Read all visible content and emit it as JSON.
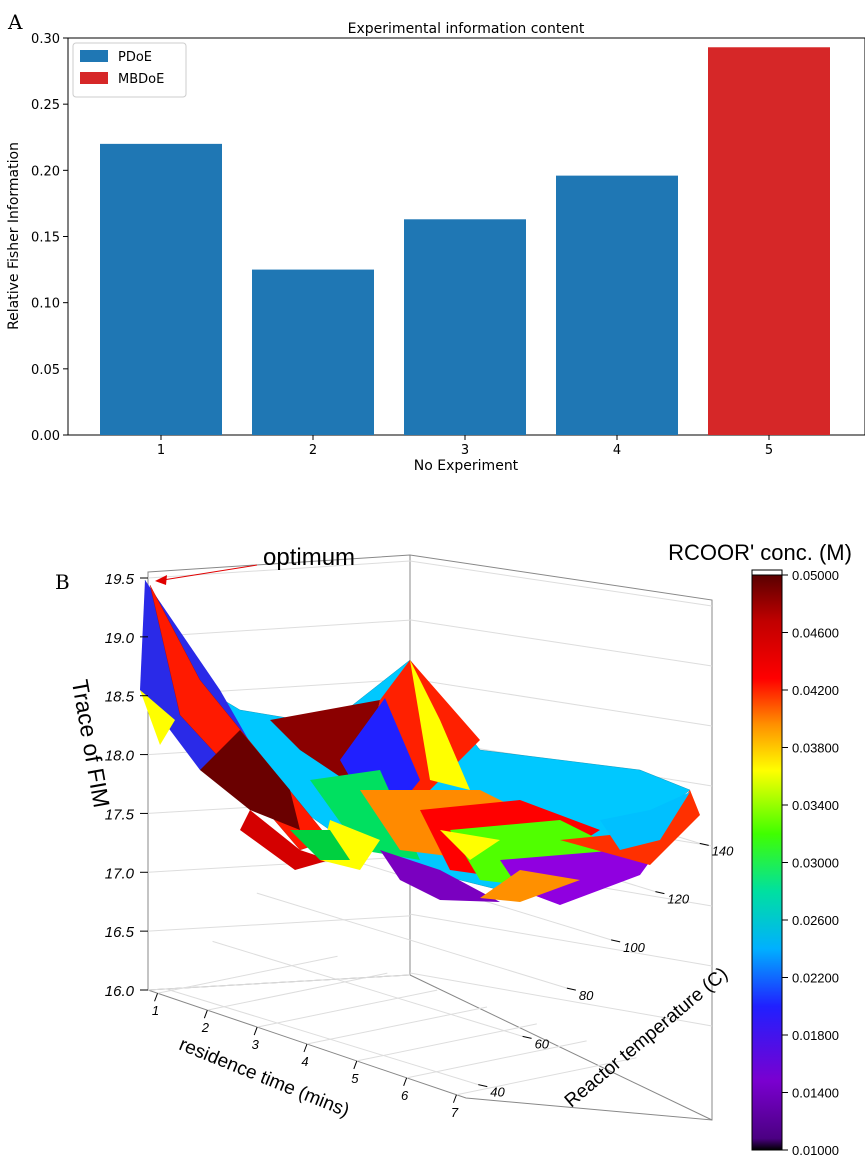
{
  "panel_letters": {
    "a": "A",
    "b": "B"
  },
  "chart_data": [
    {
      "type": "bar",
      "title": "Experimental information content",
      "xlabel": "No Experiment",
      "ylabel": "Relative Fisher Information",
      "categories": [
        "1",
        "2",
        "3",
        "4",
        "5"
      ],
      "values": [
        0.22,
        0.125,
        0.163,
        0.196,
        0.293
      ],
      "bar_groups": [
        "PDoE",
        "PDoE",
        "PDoE",
        "PDoE",
        "MBDoE"
      ],
      "legend": [
        {
          "label": "PDoE",
          "color": "#1f77b4"
        },
        {
          "label": "MBDoE",
          "color": "#d62728"
        }
      ],
      "legend_position": "top-left",
      "ylim": [
        0,
        0.3
      ],
      "yticks": [
        "0.00",
        "0.05",
        "0.10",
        "0.15",
        "0.20",
        "0.25",
        "0.30"
      ],
      "grid": false
    },
    {
      "type": "surface3d",
      "zlabel": "Trace of FIM",
      "xlabel": "residence time (mins)",
      "ylabel": "Reactor temperature (C)",
      "xticks": [
        "1",
        "2",
        "3",
        "4",
        "5",
        "6",
        "7"
      ],
      "yticks": [
        "40",
        "60",
        "80",
        "100",
        "120",
        "140"
      ],
      "zticks": [
        "16.0",
        "16.5",
        "17.0",
        "17.5",
        "18.0",
        "18.5",
        "19.0",
        "19.5"
      ],
      "zlim": [
        16.0,
        19.5
      ],
      "annotation": "optimum",
      "colorbar": {
        "title": "RCOOR' conc. (M)",
        "ticks": [
          "0.05000",
          "0.04600",
          "0.04200",
          "0.03800",
          "0.03400",
          "0.03000",
          "0.02600",
          "0.02200",
          "0.01800",
          "0.01400",
          "0.01000"
        ],
        "range": [
          0.01,
          0.05
        ]
      },
      "grid": true
    }
  ]
}
